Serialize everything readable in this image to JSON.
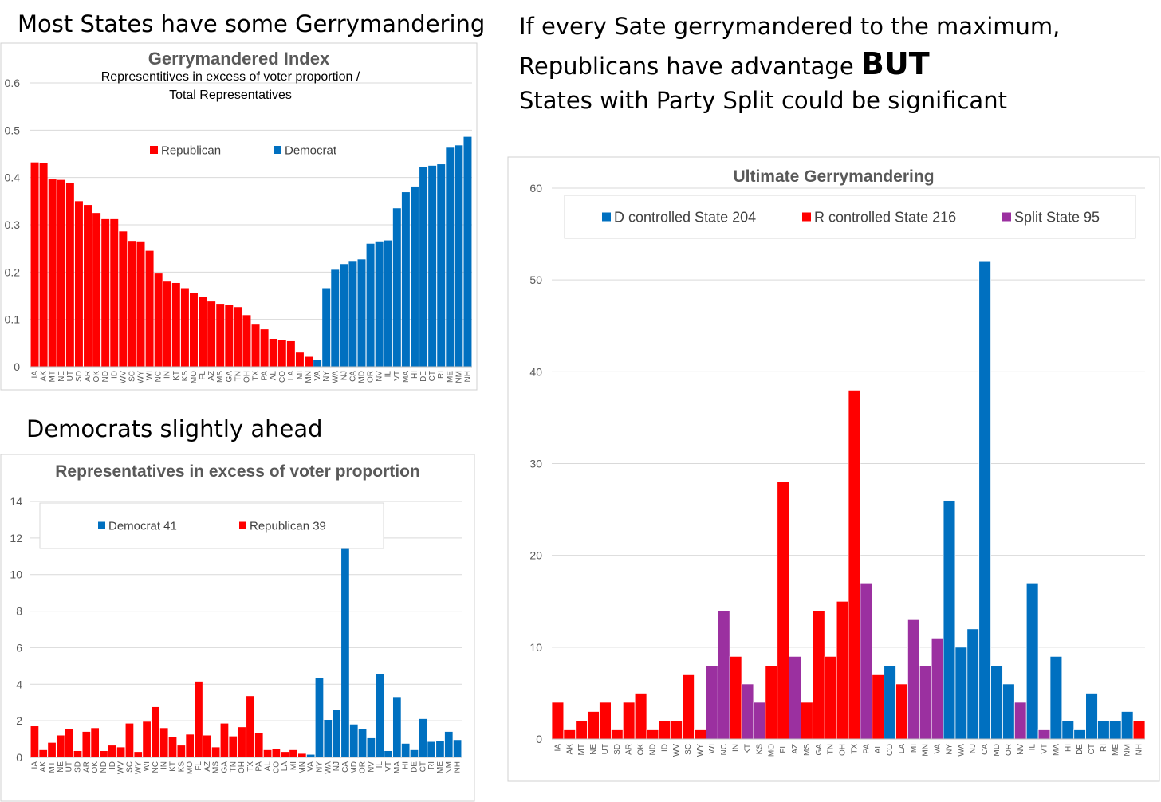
{
  "headings": {
    "top_left": "Most States have some Gerrymandering",
    "mid_left": "Democrats slightly ahead",
    "right_line1": "If every Sate gerrymandered to the maximum,",
    "right_line2": "Republicans have advantage",
    "right_line2_bold": "BUT",
    "right_line3": "States with Party Split could be significant"
  },
  "colors": {
    "republican": "#ff0000",
    "democrat": "#0070c0",
    "split": "#9b30a0"
  },
  "chart_data": [
    {
      "id": "gerrymandered-index",
      "type": "bar",
      "title": "Gerrymandered Index",
      "subtitle_line1": "Representitives in excess of voter proportion /",
      "subtitle_line2": "Total Representatives",
      "legend": [
        {
          "name": "Republican",
          "color": "#ff0000"
        },
        {
          "name": "Democrat",
          "color": "#0070c0"
        }
      ],
      "ylim": [
        0,
        0.6
      ],
      "yticks": [
        0,
        0.1,
        0.2,
        0.3,
        0.4,
        0.5,
        0.6
      ],
      "ytick_labels": [
        "0",
        "0.1",
        "0.2",
        "0.3",
        "0.4",
        "0.5",
        "0.6"
      ],
      "grid": true,
      "categories": [
        "IA",
        "AK",
        "MT",
        "NE",
        "UT",
        "SD",
        "AR",
        "OK",
        "ND",
        "ID",
        "WV",
        "SC",
        "WY",
        "WI",
        "NC",
        "IN",
        "KT",
        "KS",
        "MO",
        "FL",
        "AZ",
        "MS",
        "GA",
        "TN",
        "OH",
        "TX",
        "PA",
        "AL",
        "CO",
        "LA",
        "MI",
        "MN",
        "VA",
        "NY",
        "WA",
        "NJ",
        "CA",
        "MD",
        "OR",
        "NV",
        "IL",
        "VT",
        "MA",
        "HI",
        "DE",
        "CT",
        "RI",
        "ME",
        "NM",
        "NH"
      ],
      "values": [
        0.432,
        0.431,
        0.396,
        0.395,
        0.388,
        0.35,
        0.342,
        0.325,
        0.312,
        0.312,
        0.286,
        0.266,
        0.265,
        0.245,
        0.197,
        0.18,
        0.177,
        0.166,
        0.156,
        0.147,
        0.138,
        0.133,
        0.131,
        0.126,
        0.109,
        0.089,
        0.079,
        0.059,
        0.056,
        0.054,
        0.03,
        0.021,
        0.015,
        0.166,
        0.205,
        0.217,
        0.222,
        0.227,
        0.26,
        0.265,
        0.267,
        0.335,
        0.369,
        0.381,
        0.423,
        0.425,
        0.428,
        0.463,
        0.468,
        0.486
      ],
      "party": [
        "R",
        "R",
        "R",
        "R",
        "R",
        "R",
        "R",
        "R",
        "R",
        "R",
        "R",
        "R",
        "R",
        "R",
        "R",
        "R",
        "R",
        "R",
        "R",
        "R",
        "R",
        "R",
        "R",
        "R",
        "R",
        "R",
        "R",
        "R",
        "R",
        "R",
        "R",
        "R",
        "D",
        "D",
        "D",
        "D",
        "D",
        "D",
        "D",
        "D",
        "D",
        "D",
        "D",
        "D",
        "D",
        "D",
        "D",
        "D",
        "D",
        "D"
      ]
    },
    {
      "id": "excess-representatives",
      "type": "bar",
      "title": "Representatives in excess of voter proportion",
      "legend": [
        {
          "name": "Democrat 41",
          "color": "#0070c0"
        },
        {
          "name": "Republican 39",
          "color": "#ff0000"
        }
      ],
      "ylim": [
        0,
        14
      ],
      "yticks": [
        0,
        2,
        4,
        6,
        8,
        10,
        12,
        14
      ],
      "ytick_labels": [
        "0",
        "2",
        "4",
        "6",
        "8",
        "10",
        "12",
        "14"
      ],
      "grid": true,
      "categories": [
        "IA",
        "AK",
        "MT",
        "NE",
        "UT",
        "SD",
        "AR",
        "OK",
        "ND",
        "ID",
        "WV",
        "SC",
        "WY",
        "WI",
        "NC",
        "IN",
        "KT",
        "KS",
        "MO",
        "FL",
        "AZ",
        "MS",
        "GA",
        "TN",
        "OH",
        "TX",
        "PA",
        "AL",
        "CO",
        "LA",
        "MI",
        "MN",
        "VA",
        "NY",
        "WA",
        "NJ",
        "CA",
        "MD",
        "OR",
        "NV",
        "IL",
        "VT",
        "MA",
        "HI",
        "DE",
        "CT",
        "RI",
        "ME",
        "NM",
        "NH"
      ],
      "values": [
        1.7,
        0.4,
        0.8,
        1.2,
        1.55,
        0.35,
        1.4,
        1.6,
        0.35,
        0.65,
        0.55,
        1.85,
        0.3,
        1.95,
        2.75,
        1.6,
        1.1,
        0.65,
        1.25,
        4.15,
        1.2,
        0.55,
        1.85,
        1.15,
        1.65,
        3.35,
        1.35,
        0.4,
        0.45,
        0.3,
        0.4,
        0.2,
        0.15,
        4.35,
        2.05,
        2.6,
        11.4,
        1.8,
        1.55,
        1.05,
        4.55,
        0.35,
        3.3,
        0.75,
        0.4,
        2.1,
        0.85,
        0.9,
        1.4,
        0.95
      ],
      "party": [
        "R",
        "R",
        "R",
        "R",
        "R",
        "R",
        "R",
        "R",
        "R",
        "R",
        "R",
        "R",
        "R",
        "R",
        "R",
        "R",
        "R",
        "R",
        "R",
        "R",
        "R",
        "R",
        "R",
        "R",
        "R",
        "R",
        "R",
        "R",
        "R",
        "R",
        "R",
        "R",
        "D",
        "D",
        "D",
        "D",
        "D",
        "D",
        "D",
        "D",
        "D",
        "D",
        "D",
        "D",
        "D",
        "D",
        "D",
        "D",
        "D",
        "D"
      ]
    },
    {
      "id": "ultimate-gerrymandering",
      "type": "bar",
      "title": "Ultimate Gerrymandering",
      "legend": [
        {
          "name": "D controlled State 204",
          "color": "#0070c0"
        },
        {
          "name": "R controlled State 216",
          "color": "#ff0000"
        },
        {
          "name": "Split State 95",
          "color": "#9b30a0"
        }
      ],
      "ylim": [
        0,
        60
      ],
      "yticks": [
        0,
        10,
        20,
        30,
        40,
        50,
        60
      ],
      "ytick_labels": [
        "0",
        "10",
        "20",
        "30",
        "40",
        "50",
        "60"
      ],
      "grid": true,
      "categories": [
        "IA",
        "AK",
        "MT",
        "NE",
        "UT",
        "SD",
        "AR",
        "OK",
        "ND",
        "ID",
        "WV",
        "SC",
        "WY",
        "WI",
        "NC",
        "IN",
        "KT",
        "KS",
        "MO",
        "FL",
        "AZ",
        "MS",
        "GA",
        "TN",
        "OH",
        "TX",
        "PA",
        "AL",
        "CO",
        "LA",
        "MI",
        "MN",
        "VA",
        "NY",
        "WA",
        "NJ",
        "CA",
        "MD",
        "OR",
        "NV",
        "IL",
        "VT",
        "MA",
        "HI",
        "DE",
        "CT",
        "RI",
        "ME",
        "NM",
        "NH"
      ],
      "values": [
        4,
        1,
        2,
        3,
        4,
        1,
        4,
        5,
        1,
        2,
        2,
        7,
        1,
        8,
        14,
        9,
        6,
        4,
        8,
        28,
        9,
        4,
        14,
        9,
        15,
        38,
        17,
        7,
        8,
        6,
        13,
        8,
        11,
        26,
        10,
        12,
        52,
        8,
        6,
        4,
        17,
        1,
        9,
        2,
        1,
        5,
        2,
        2,
        3,
        2
      ],
      "party": [
        "R",
        "R",
        "R",
        "R",
        "R",
        "R",
        "R",
        "R",
        "R",
        "R",
        "R",
        "R",
        "R",
        "S",
        "S",
        "R",
        "S",
        "S",
        "R",
        "R",
        "S",
        "R",
        "R",
        "R",
        "R",
        "R",
        "S",
        "R",
        "D",
        "R",
        "S",
        "S",
        "S",
        "D",
        "D",
        "D",
        "D",
        "D",
        "D",
        "S",
        "D",
        "S",
        "D",
        "D",
        "D",
        "D",
        "D",
        "D",
        "D",
        "R"
      ]
    }
  ]
}
